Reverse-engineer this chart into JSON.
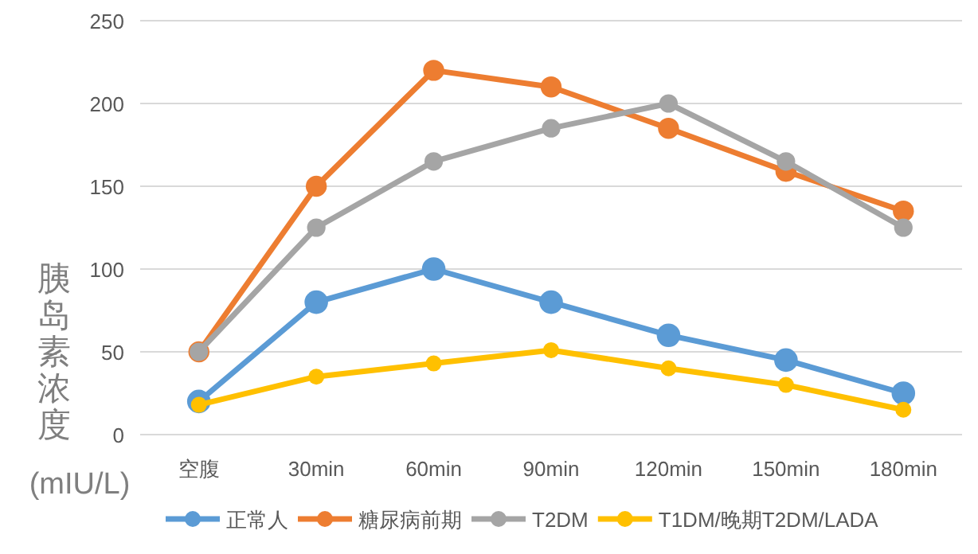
{
  "chart_data": {
    "type": "line",
    "ylabel": "胰岛素浓度",
    "annotations": [
      "(mIU/L)"
    ],
    "categories": [
      "空腹",
      "30min",
      "60min",
      "90min",
      "120min",
      "150min",
      "180min"
    ],
    "ylim": [
      0,
      250
    ],
    "yticks": [
      0,
      50,
      100,
      150,
      200,
      250
    ],
    "grid": "y",
    "legend": "bottom",
    "marker": "circle",
    "line_style": "solid",
    "series": [
      {
        "name": "正常人",
        "color": "#5b9bd5",
        "values": [
          20,
          80,
          100,
          80,
          60,
          45,
          25
        ]
      },
      {
        "name": "糖尿病前期",
        "color": "#ed7d31",
        "values": [
          50,
          150,
          220,
          210,
          185,
          159,
          135
        ]
      },
      {
        "name": "T2DM",
        "color": "#a5a5a5",
        "values": [
          50,
          125,
          165,
          185,
          200,
          165,
          125
        ]
      },
      {
        "name": "T1DM/晚期T2DM/LADA",
        "color": "#ffc000",
        "values": [
          18,
          35,
          43,
          51,
          40,
          30,
          15
        ]
      }
    ]
  }
}
